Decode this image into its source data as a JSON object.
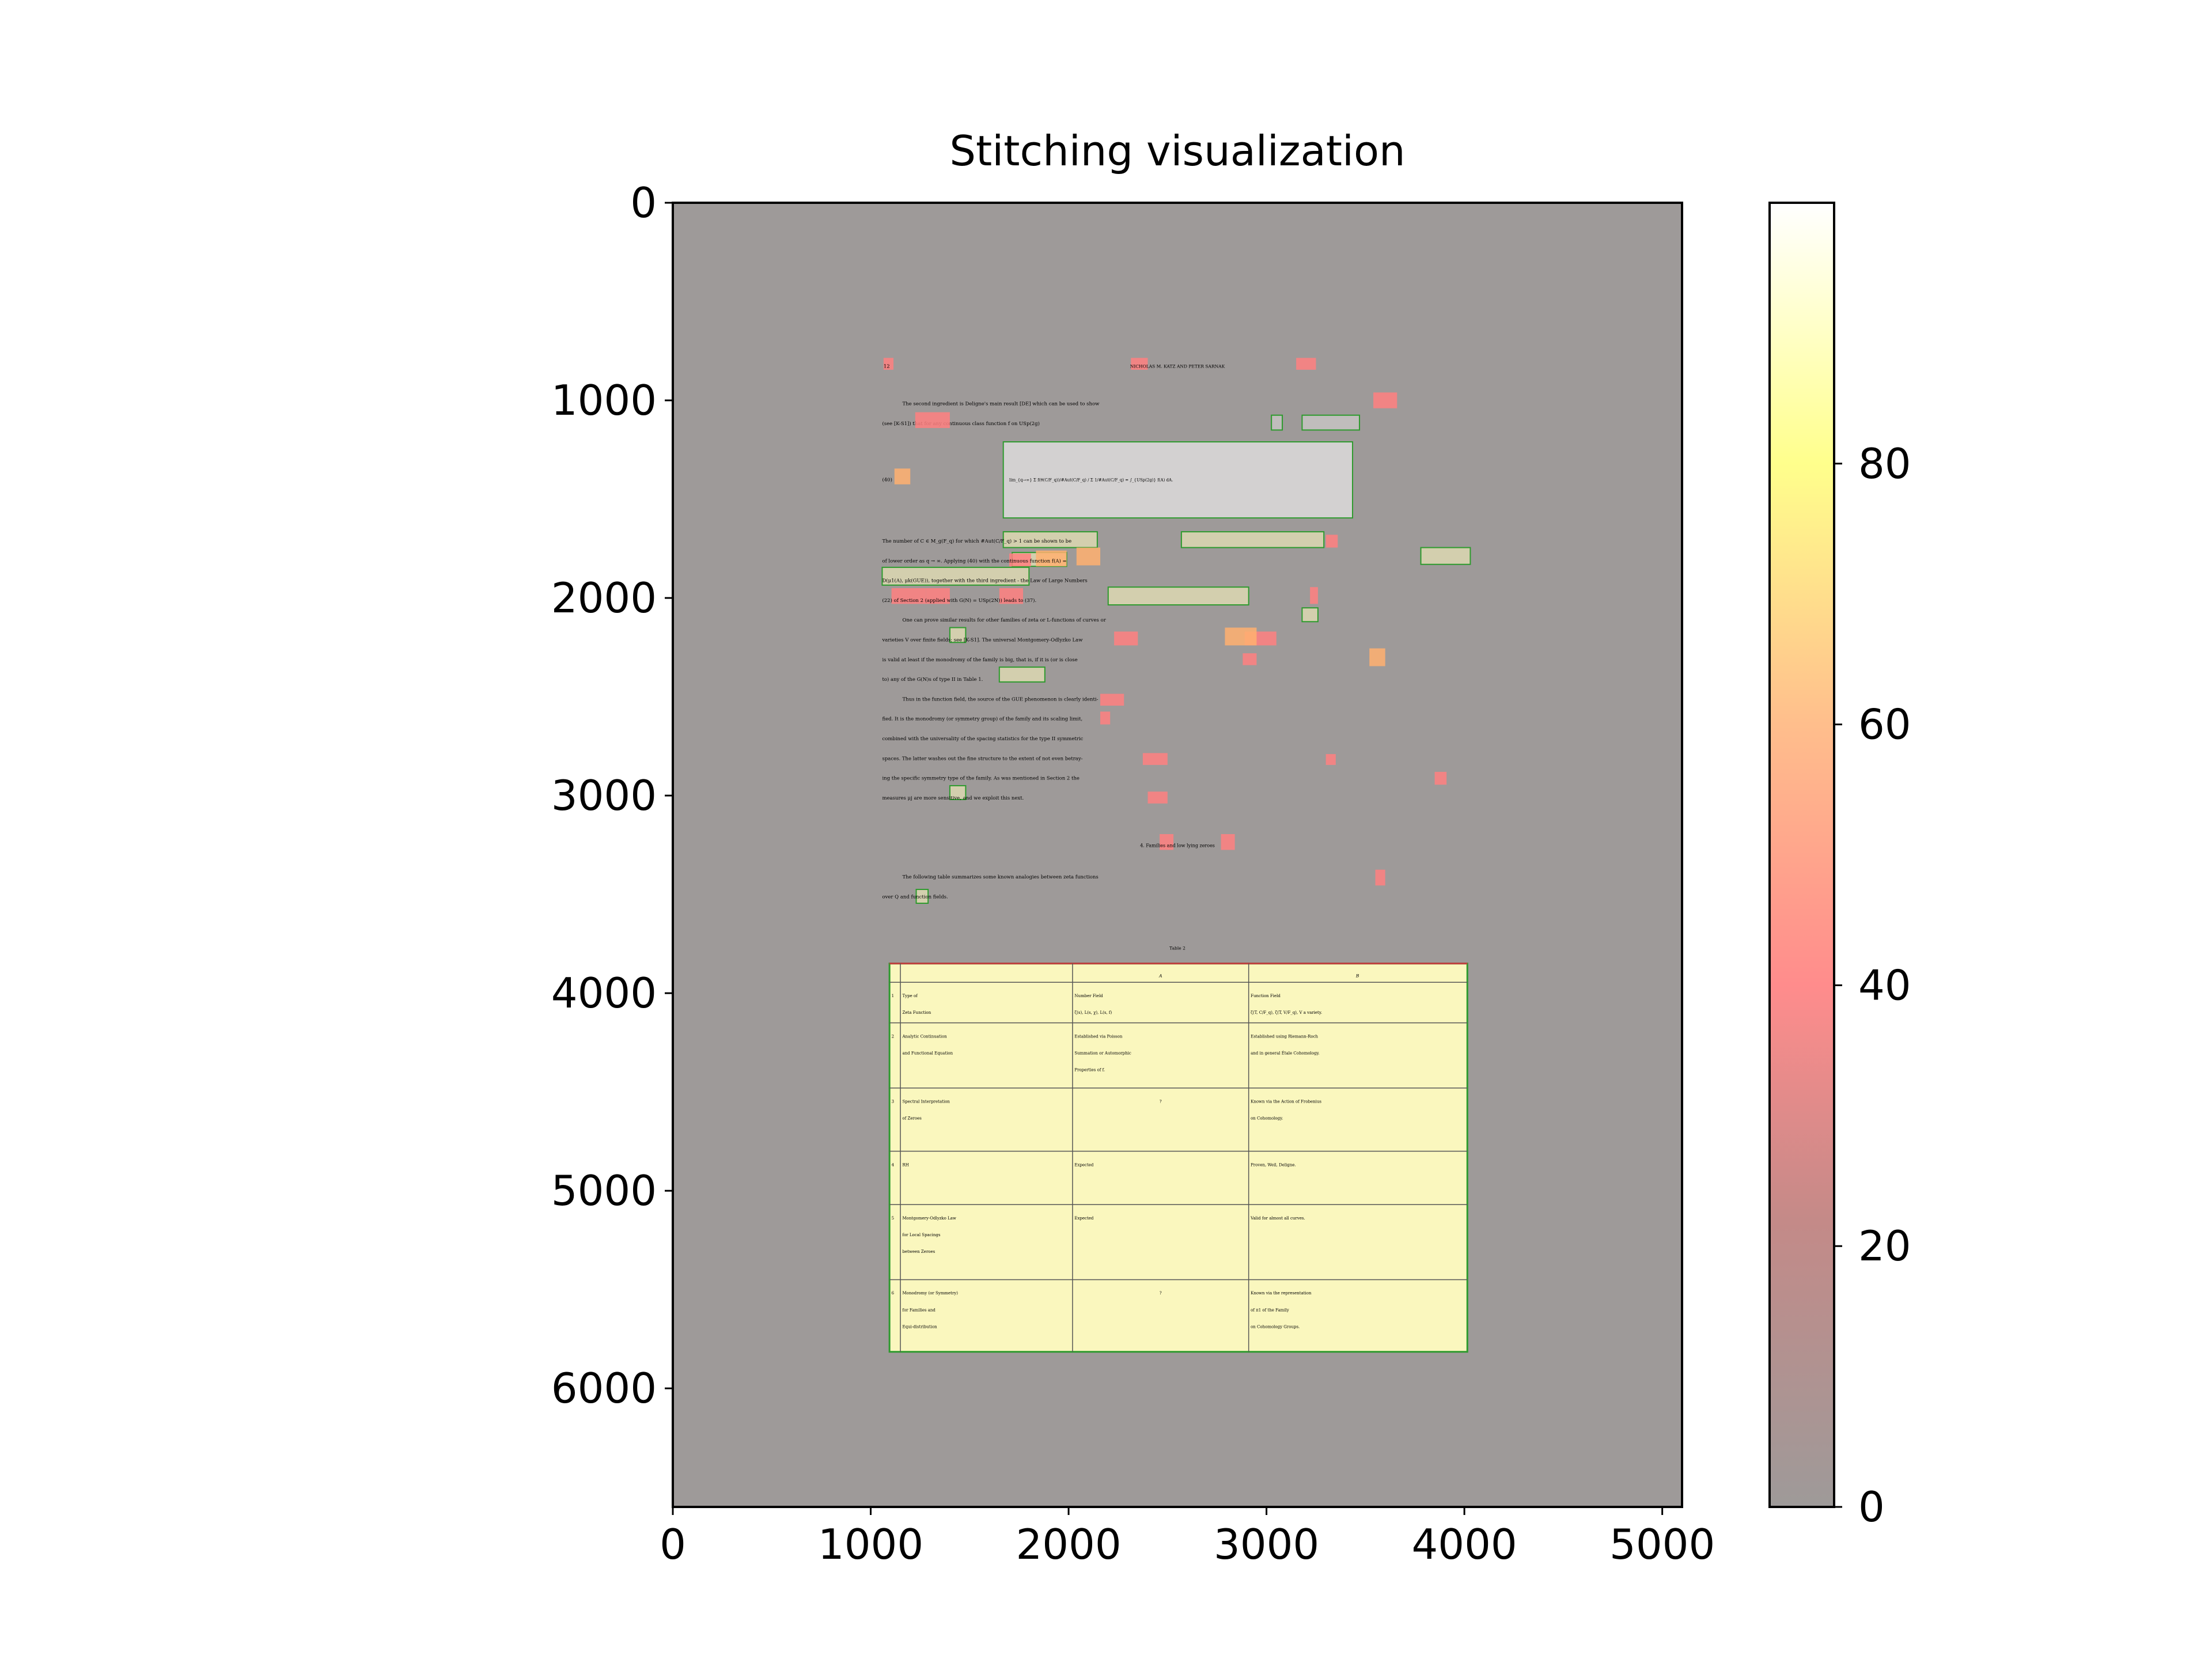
{
  "chart_data": {
    "type": "heatmap",
    "title": "Stitching visualization",
    "xlim": [
      0,
      5100
    ],
    "ylim": [
      6600,
      0
    ],
    "x_ticks": [
      0,
      1000,
      2000,
      3000,
      4000,
      5000
    ],
    "y_ticks": [
      0,
      1000,
      2000,
      3000,
      4000,
      5000,
      6000
    ],
    "colorbar": {
      "range": [
        0,
        100
      ],
      "ticks": [
        0,
        20,
        40,
        60,
        80
      ],
      "colormap": "hot (translucent over page image)"
    },
    "colors": {
      "background": "#9e9a99",
      "box_edge": "#2e9a2e",
      "hot_red": "#ff8080",
      "hot_orange": "#ffb070",
      "table_fill": "#fffcc0"
    },
    "page": {
      "running_head_left": "12",
      "running_head": "NICHOLAS M. KATZ AND PETER SARNAK",
      "paragraphs_1": [
        "The second ingredient is Deligne's main result [DE] which can be used to show",
        "(see [K-S1]) that for any continuous class function f on USp(2g)"
      ],
      "equation_label": "(40)",
      "equation": "lim_{q→∞} Σ f(θ(C/F_q))/#Aut(C/F_q) / Σ 1/#Aut(C/F_q) = ∫_{USp(2g)} f(A) dA.",
      "paragraphs_2": [
        "The number of C ∈ M_g(F_q) for which #Aut(C/F_q) > 1 can be shown to be",
        "of lower order as q → ∞. Applying (40) with the continuous function f(A) =",
        "D(μ1(A), μk(GUE)), together with the third ingredient - the Law of Large Numbers",
        "(22) of Section 2 (applied with G(N) = USp(2N)) leads to (37).",
        "One can prove similar results for other families of zeta or L-functions of curves or",
        "varieties V over finite fields; see [K-S1]. The universal Montgomery-Odlyzko Law",
        "is valid at least if the monodromy of the family is big, that is, if it is (or is close",
        "to) any of the G(N)s of type II in Table 1.",
        "Thus in the function field, the source of the GUE phenomenon is clearly identi-",
        "fied. It is the monodromy (or symmetry group) of the family and its scaling limit,",
        "combined with the universality of the spacing statistics for the type II symmetric",
        "spaces. The latter washes out the fine structure to the extent of not even betray-",
        "ing the specific symmetry type of the family. As was mentioned in Section 2 the",
        "measures μj are more sensitive, and we exploit this next."
      ],
      "section_heading": "4. Families and low lying zeroes",
      "paragraphs_3": [
        "The following table summarizes some known analogies between zeta functions",
        "over Q and function fields."
      ],
      "table_caption": "Table 2",
      "table": {
        "headers": [
          "A",
          "B"
        ],
        "rows": [
          {
            "n": "1",
            "c": [
              "Type of",
              "Zeta Function"
            ],
            "a": [
              "Number Field",
              "ζ(s), L(s, χ), L(s, f)"
            ],
            "b": [
              "Function Field",
              "ζ(T, C/F_q), ζ(T, V/F_q), V a variety."
            ]
          },
          {
            "n": "2",
            "c": [
              "Analytic Continuation",
              "and Functional Equation"
            ],
            "a": [
              "Established via Poisson",
              "Summation or Automorphic",
              "Properties of f."
            ],
            "b": [
              "Established using Riemann-Roch",
              "and in general Étale Cohomology."
            ]
          },
          {
            "n": "3",
            "c": [
              "Spectral Interpretation",
              "of Zeroes"
            ],
            "a": [
              "?"
            ],
            "b": [
              "Known via the Action of Frobenius",
              "on Cohomology."
            ]
          },
          {
            "n": "4",
            "c": [
              "RH"
            ],
            "a": [
              "Expected"
            ],
            "b": [
              "Proven, Weil, Deligne."
            ]
          },
          {
            "n": "5",
            "c": [
              "Montgomery-Odlyzko Law",
              "for Local Spacings",
              "between Zeroes"
            ],
            "a": [
              "Expected"
            ],
            "b": [
              "Valid for almost all curves."
            ]
          },
          {
            "n": "6",
            "c": [
              "Monodromy (or Symmetry)",
              "for Families and",
              "Equi-distribution"
            ],
            "a": [
              "?"
            ],
            "b": [
              "Known via the representation",
              "of π1 of the Family",
              "on Cohomology Groups."
            ]
          }
        ]
      }
    }
  }
}
